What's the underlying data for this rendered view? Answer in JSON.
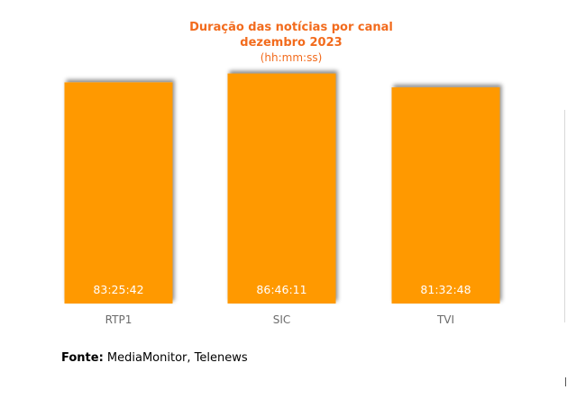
{
  "chart_data": {
    "type": "bar",
    "title": "Duração das notícias por canal",
    "subtitle": "dezembro 2023",
    "unit": "(hh:mm:ss)",
    "categories": [
      "RTP1",
      "SIC",
      "TVI"
    ],
    "value_labels": [
      "83:25:42",
      "86:46:11",
      "81:32:48"
    ],
    "values": [
      300342,
      312371,
      293568
    ],
    "ylim": [
      0,
      340000
    ],
    "grid": false,
    "legend": "none",
    "bar_color": "#ff9900",
    "title_color": "#f26b1d"
  },
  "source": {
    "label": "Fonte:",
    "text": "MediaMonitor, Telenews"
  }
}
